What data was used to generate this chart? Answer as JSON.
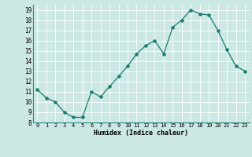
{
  "x": [
    0,
    1,
    2,
    3,
    4,
    5,
    6,
    7,
    8,
    9,
    10,
    11,
    12,
    13,
    14,
    15,
    16,
    17,
    18,
    19,
    20,
    21,
    22,
    23
  ],
  "y": [
    11.2,
    10.4,
    10.0,
    9.0,
    8.5,
    8.5,
    11.0,
    10.5,
    11.5,
    12.5,
    13.5,
    14.7,
    15.5,
    16.0,
    14.7,
    17.3,
    18.0,
    19.0,
    18.6,
    18.5,
    17.0,
    15.1,
    13.5,
    13.0
  ],
  "xlabel": "Humidex (Indice chaleur)",
  "ylim": [
    8,
    19.5
  ],
  "xlim": [
    -0.5,
    23.5
  ],
  "yticks": [
    8,
    9,
    10,
    11,
    12,
    13,
    14,
    15,
    16,
    17,
    18,
    19
  ],
  "xticks": [
    0,
    1,
    2,
    3,
    4,
    5,
    6,
    7,
    8,
    9,
    10,
    11,
    12,
    13,
    14,
    15,
    16,
    17,
    18,
    19,
    20,
    21,
    22,
    23
  ],
  "xtick_labels": [
    "0",
    "1",
    "2",
    "3",
    "4",
    "5",
    "6",
    "7",
    "8",
    "9",
    "10",
    "11",
    "12",
    "13",
    "14",
    "15",
    "16",
    "17",
    "18",
    "19",
    "20",
    "21",
    "22",
    "23"
  ],
  "line_color": "#1a7a6e",
  "marker_color": "#1a7a6e",
  "bg_color": "#cce8e4",
  "grid_color": "#ffffff",
  "grid_minor_color": "#e8d8d8"
}
